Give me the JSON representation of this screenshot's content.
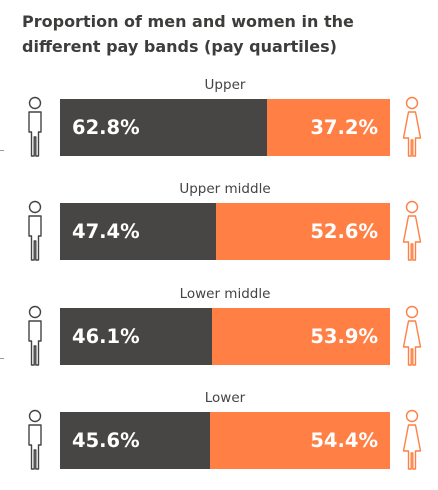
{
  "chart_data": {
    "type": "bar",
    "title": "Proportion of men and women in the different pay bands (pay quartiles)",
    "stacked": true,
    "orientation": "horizontal",
    "categories": [
      "Upper",
      "Upper middle",
      "Lower middle",
      "Lower"
    ],
    "series": [
      {
        "values": [
          62.8,
          47.4,
          46.1,
          45.6
        ]
      },
      {
        "values": [
          37.2,
          52.6,
          53.9,
          54.4
        ]
      }
    ],
    "value_labels": {
      "men": [
        "62.8%",
        "47.4%",
        "46.1%",
        "45.6%"
      ],
      "women": [
        "37.2%",
        "52.6%",
        "53.9%",
        "54.4%"
      ]
    },
    "xlim": [
      0,
      100
    ],
    "grid": false,
    "legend": "icons at both ends of each bar (male left, female right)"
  },
  "colors": {
    "men": "#474644",
    "women": "#ff7f45",
    "male_icon": "#444444",
    "female_icon": "#ff7f45"
  },
  "icons": {
    "left": "male-figure-icon",
    "right": "female-figure-icon"
  }
}
